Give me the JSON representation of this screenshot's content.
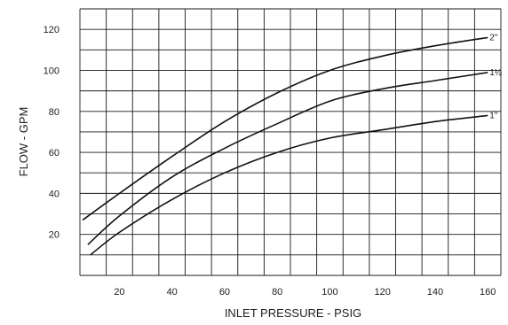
{
  "chart_data": {
    "type": "line",
    "title": "",
    "xlabel": "INLET PRESSURE - PSIG",
    "ylabel": "FLOW - GPM",
    "xlim": [
      5,
      165
    ],
    "ylim": [
      0,
      130
    ],
    "xticks": [
      20,
      40,
      60,
      80,
      100,
      120,
      140,
      160
    ],
    "yticks": [
      20,
      40,
      60,
      80,
      100,
      120
    ],
    "grid": true,
    "legend": "none",
    "series": [
      {
        "name": "2\"",
        "x": [
          6,
          20,
          40,
          60,
          80,
          100,
          120,
          140,
          160
        ],
        "y": [
          27,
          40,
          58,
          75,
          89,
          100,
          107,
          112,
          116
        ]
      },
      {
        "name": "1½",
        "x": [
          8,
          20,
          40,
          60,
          80,
          100,
          120,
          140,
          160
        ],
        "y": [
          15,
          29,
          48,
          62,
          74,
          85,
          91,
          95,
          99
        ]
      },
      {
        "name": "1\"",
        "x": [
          9,
          20,
          40,
          60,
          80,
          100,
          120,
          140,
          160
        ],
        "y": [
          10,
          21,
          37,
          50,
          60,
          67,
          71,
          75,
          78
        ]
      }
    ]
  }
}
